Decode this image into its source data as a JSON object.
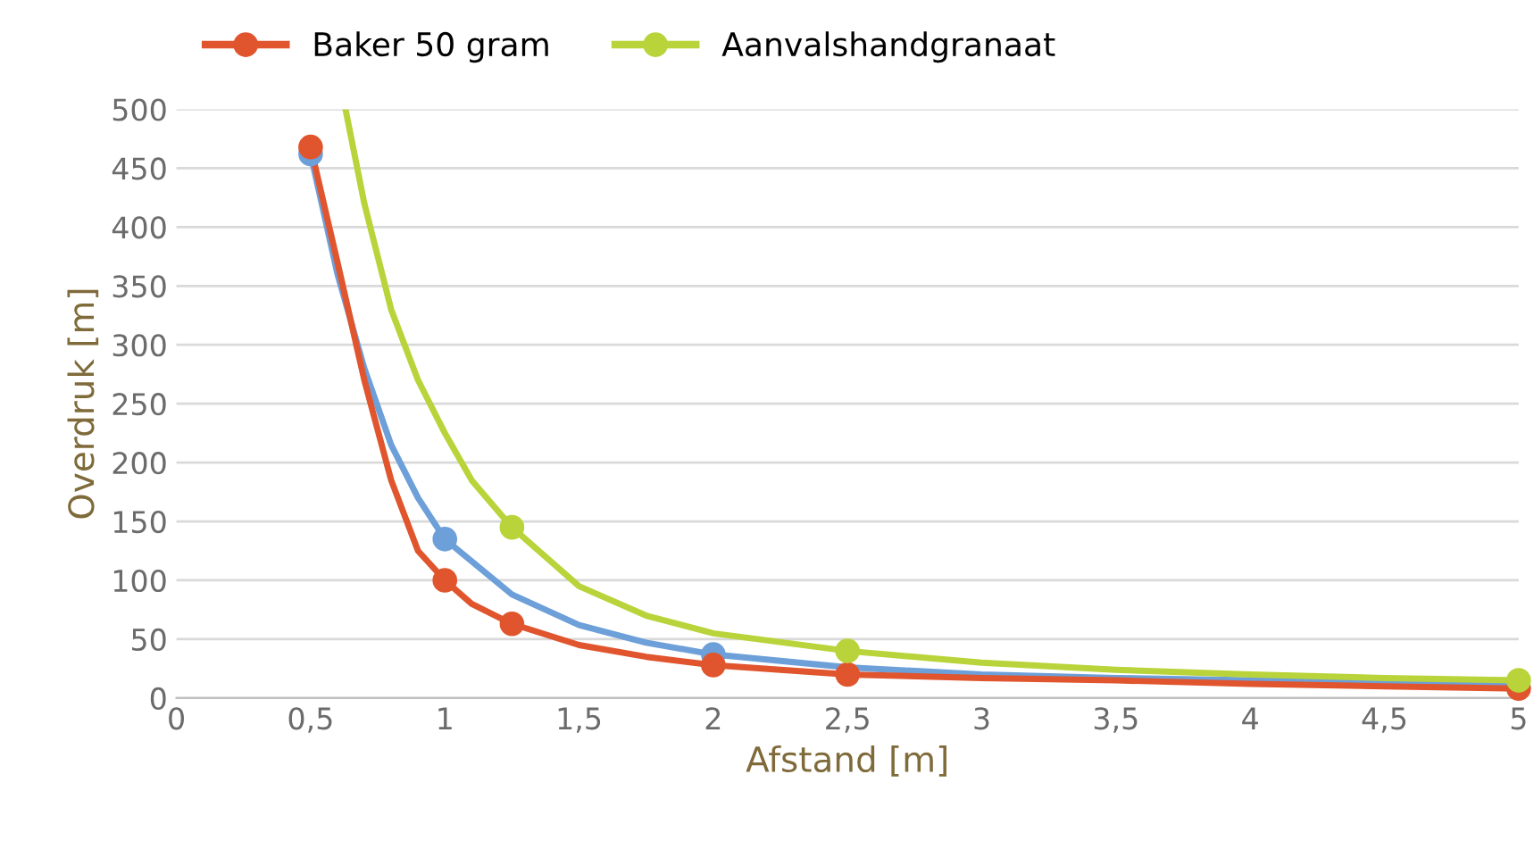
{
  "chart_data": {
    "type": "line",
    "xlabel": "Afstand [m]",
    "ylabel": "Overdruk [m]",
    "xlim": [
      0,
      5
    ],
    "ylim": [
      0,
      500
    ],
    "xticks": [
      {
        "value": 0,
        "label": "0"
      },
      {
        "value": 0.5,
        "label": "0,5"
      },
      {
        "value": 1,
        "label": "1"
      },
      {
        "value": 1.5,
        "label": "1,5"
      },
      {
        "value": 2,
        "label": "2"
      },
      {
        "value": 2.5,
        "label": "2,5"
      },
      {
        "value": 3,
        "label": "3"
      },
      {
        "value": 3.5,
        "label": "3,5"
      },
      {
        "value": 4,
        "label": "4"
      },
      {
        "value": 4.5,
        "label": "4,5"
      },
      {
        "value": 5,
        "label": "5"
      }
    ],
    "yticks": [
      0,
      50,
      100,
      150,
      200,
      250,
      300,
      350,
      400,
      450,
      500
    ],
    "grid": "y",
    "legend": "top",
    "series": [
      {
        "marker": "none",
        "color": "#6d9fd9",
        "x": [
          0.5,
          0.6,
          0.7,
          0.8,
          0.9,
          1,
          1.25,
          1.5,
          1.75,
          2,
          2.5,
          3,
          3.5,
          4,
          4.5,
          5
        ],
        "values": [
          462,
          360,
          280,
          215,
          170,
          135,
          88,
          62,
          47,
          37,
          26,
          20,
          17,
          15,
          13,
          12
        ]
      },
      {
        "marker": "none",
        "name": "Baker 50 gram",
        "color": "#e0552d",
        "x": [
          0.5,
          0.6,
          0.7,
          0.8,
          0.9,
          1,
          1.1,
          1.25,
          1.5,
          1.75,
          2,
          2.5,
          3,
          3.5,
          4,
          4.5,
          5
        ],
        "values": [
          468,
          370,
          270,
          185,
          125,
          100,
          80,
          63,
          45,
          35,
          28,
          20,
          17,
          15,
          12,
          10,
          8
        ]
      },
      {
        "marker": "none",
        "name": "Aanvalshandgranaat",
        "color": "#b8d43a",
        "x": [
          0.63,
          0.7,
          0.8,
          0.9,
          1,
          1.1,
          1.25,
          1.5,
          1.75,
          2,
          2.5,
          3,
          3.5,
          4,
          4.5,
          5
        ],
        "values": [
          500,
          420,
          330,
          270,
          225,
          185,
          145,
          95,
          70,
          55,
          40,
          30,
          24,
          20,
          17,
          15
        ]
      },
      {
        "type": "scatter",
        "marker": "circle",
        "color": "#6d9fd9",
        "x": [
          0.5,
          1,
          2
        ],
        "values": [
          462,
          135,
          37
        ]
      },
      {
        "type": "scatter",
        "marker": "circle",
        "color": "#e0552d",
        "x": [
          0.5,
          1,
          1.25,
          2,
          2.5,
          5
        ],
        "values": [
          468,
          100,
          63,
          28,
          20,
          8
        ]
      },
      {
        "type": "scatter",
        "marker": "circle",
        "color": "#b8d43a",
        "x": [
          1.25,
          2.5,
          5
        ],
        "values": [
          145,
          40,
          15
        ]
      }
    ]
  }
}
